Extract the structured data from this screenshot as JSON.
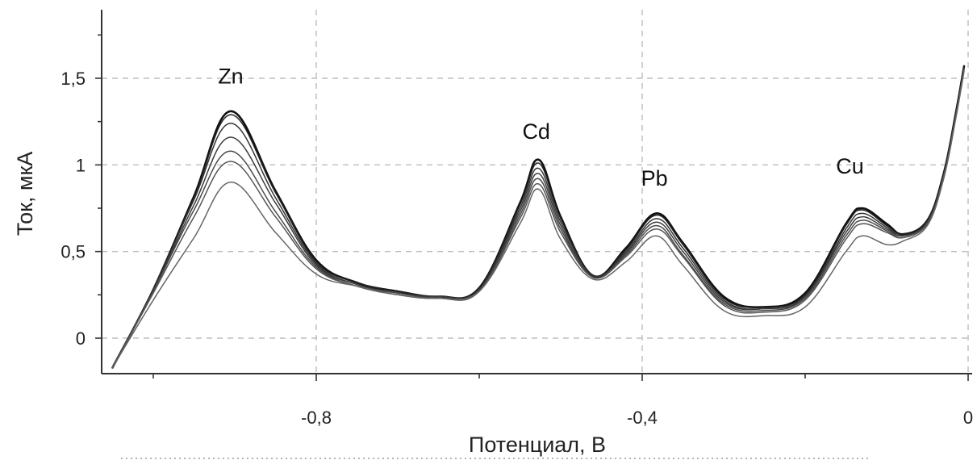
{
  "chart_data": {
    "type": "line",
    "title": "",
    "xlabel": "Потенциал, В",
    "ylabel": "Ток, мкА",
    "xlim": [
      -1.13,
      0.0
    ],
    "ylim": [
      -0.2,
      1.9
    ],
    "grid": true,
    "x_ticks": [
      {
        "value": -0.8,
        "label": "-0,8"
      },
      {
        "value": -0.4,
        "label": "-0,4"
      },
      {
        "value": 0.0,
        "label": "0"
      }
    ],
    "x_minor_ticks": [
      -1.0,
      -0.6,
      -0.2
    ],
    "y_ticks": [
      {
        "value": 0,
        "label": "0"
      },
      {
        "value": 0.5,
        "label": "0,5"
      },
      {
        "value": 1,
        "label": "1"
      },
      {
        "value": 1.5,
        "label": "1,5"
      }
    ],
    "annotations": [
      {
        "text": "Zn",
        "x": -0.905,
        "y": 1.47
      },
      {
        "text": "Cd",
        "x": -0.53,
        "y": 1.15
      },
      {
        "text": "Pb",
        "x": -0.385,
        "y": 0.88
      },
      {
        "text": "Cu",
        "x": -0.145,
        "y": 0.95
      }
    ],
    "x": [
      -1.05,
      -1.0,
      -0.95,
      -0.905,
      -0.85,
      -0.8,
      -0.75,
      -0.7,
      -0.65,
      -0.6,
      -0.55,
      -0.527,
      -0.5,
      -0.46,
      -0.42,
      -0.383,
      -0.35,
      -0.3,
      -0.25,
      -0.2,
      -0.15,
      -0.13,
      -0.1,
      -0.08,
      -0.05,
      -0.03,
      -0.015,
      -0.005
    ],
    "series": [
      {
        "values": [
          -0.17,
          0.28,
          0.82,
          1.31,
          0.85,
          0.45,
          0.32,
          0.27,
          0.24,
          0.29,
          0.78,
          1.03,
          0.7,
          0.36,
          0.52,
          0.72,
          0.55,
          0.24,
          0.18,
          0.26,
          0.66,
          0.75,
          0.66,
          0.6,
          0.68,
          0.95,
          1.3,
          1.57
        ]
      },
      {
        "values": [
          -0.17,
          0.28,
          0.81,
          1.29,
          0.84,
          0.44,
          0.32,
          0.27,
          0.24,
          0.29,
          0.77,
          1.01,
          0.69,
          0.36,
          0.51,
          0.71,
          0.54,
          0.23,
          0.18,
          0.25,
          0.65,
          0.74,
          0.65,
          0.6,
          0.68,
          0.95,
          1.3,
          1.57
        ]
      },
      {
        "values": [
          -0.17,
          0.28,
          0.8,
          1.24,
          0.81,
          0.43,
          0.31,
          0.26,
          0.24,
          0.28,
          0.75,
          0.98,
          0.67,
          0.36,
          0.5,
          0.69,
          0.52,
          0.22,
          0.17,
          0.24,
          0.63,
          0.72,
          0.64,
          0.59,
          0.67,
          0.94,
          1.29,
          1.56
        ]
      },
      {
        "values": [
          -0.17,
          0.27,
          0.77,
          1.16,
          0.78,
          0.42,
          0.31,
          0.26,
          0.24,
          0.28,
          0.73,
          0.95,
          0.65,
          0.35,
          0.49,
          0.67,
          0.5,
          0.21,
          0.17,
          0.24,
          0.61,
          0.7,
          0.63,
          0.59,
          0.67,
          0.94,
          1.29,
          1.56
        ]
      },
      {
        "values": [
          -0.17,
          0.27,
          0.74,
          1.08,
          0.73,
          0.41,
          0.3,
          0.26,
          0.23,
          0.27,
          0.71,
          0.92,
          0.63,
          0.35,
          0.48,
          0.65,
          0.48,
          0.2,
          0.16,
          0.23,
          0.59,
          0.68,
          0.62,
          0.58,
          0.66,
          0.93,
          1.28,
          1.55
        ]
      },
      {
        "values": [
          -0.17,
          0.26,
          0.7,
          1.02,
          0.7,
          0.4,
          0.3,
          0.25,
          0.23,
          0.27,
          0.69,
          0.89,
          0.61,
          0.35,
          0.47,
          0.63,
          0.47,
          0.19,
          0.15,
          0.22,
          0.57,
          0.66,
          0.61,
          0.58,
          0.66,
          0.93,
          1.28,
          1.55
        ]
      },
      {
        "values": [
          -0.17,
          0.22,
          0.58,
          0.9,
          0.61,
          0.37,
          0.3,
          0.25,
          0.23,
          0.27,
          0.66,
          0.86,
          0.57,
          0.34,
          0.44,
          0.59,
          0.42,
          0.16,
          0.13,
          0.18,
          0.5,
          0.59,
          0.54,
          0.56,
          0.65,
          0.92,
          1.27,
          1.54
        ]
      }
    ],
    "series_colors": [
      "#111111",
      "#222222",
      "#333333",
      "#3c3c3c",
      "#4a4a4a",
      "#555555",
      "#666666"
    ]
  }
}
